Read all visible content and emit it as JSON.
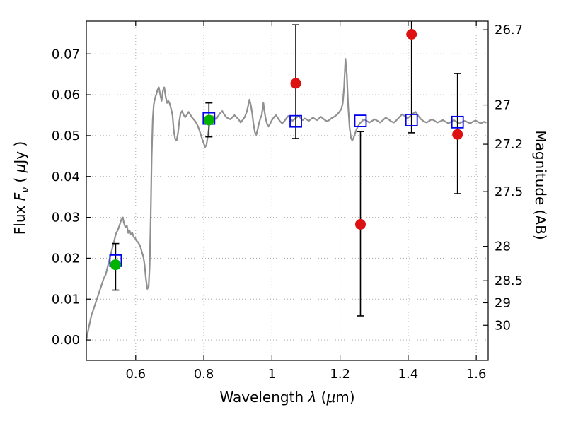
{
  "labels": {
    "xlabel": {
      "t1": "Wavelength ",
      "sym": "λ",
      "t2": " (",
      "usym": "μ",
      "t3": "m)"
    },
    "ylabel_left": {
      "t1": "Flux ",
      "sym": "F",
      "sub": "ν",
      "t2": " ( ",
      "usym": "μ",
      "t3": "Jy )"
    },
    "ylabel_right": "Magnitude (AB)"
  },
  "chart_data": {
    "type": "line",
    "title": "",
    "xlabel": "Wavelength λ (μm)",
    "ylabel": "Flux Fν ( μJy )",
    "ylabel_right": "Magnitude (AB)",
    "xlim": [
      0.455,
      1.635
    ],
    "ylim": [
      -0.005,
      0.078
    ],
    "grid": true,
    "x_ticks": [
      {
        "v": 0.6,
        "label": "0.6"
      },
      {
        "v": 0.8,
        "label": "0.8"
      },
      {
        "v": 1.0,
        "label": "1"
      },
      {
        "v": 1.2,
        "label": "1.2"
      },
      {
        "v": 1.4,
        "label": "1.4"
      },
      {
        "v": 1.6,
        "label": "1.6"
      }
    ],
    "y_ticks": [
      {
        "v": 0.0,
        "label": "0.00"
      },
      {
        "v": 0.01,
        "label": "0.01"
      },
      {
        "v": 0.02,
        "label": "0.02"
      },
      {
        "v": 0.03,
        "label": "0.03"
      },
      {
        "v": 0.04,
        "label": "0.04"
      },
      {
        "v": 0.05,
        "label": "0.05"
      },
      {
        "v": 0.06,
        "label": "0.06"
      },
      {
        "v": 0.07,
        "label": "0.07"
      }
    ],
    "right_ticks": [
      {
        "v": 0.0759,
        "label": "26.7"
      },
      {
        "v": 0.0575,
        "label": "27"
      },
      {
        "v": 0.0479,
        "label": "27.2"
      },
      {
        "v": 0.0363,
        "label": "27.5"
      },
      {
        "v": 0.0229,
        "label": "28"
      },
      {
        "v": 0.0145,
        "label": "28.5"
      },
      {
        "v": 0.0091,
        "label": "29"
      },
      {
        "v": 0.0036,
        "label": "30"
      }
    ],
    "colors": {
      "spectrum": "#909090",
      "observed": "#dd1111",
      "detected": "#00b300",
      "model": "#0000ee",
      "errorbar": "#000000",
      "grid": "#aaaaaa",
      "spine": "#000000"
    },
    "model_photometry": [
      {
        "x": 0.541,
        "y": 0.0194
      },
      {
        "x": 0.815,
        "y": 0.0542
      },
      {
        "x": 1.07,
        "y": 0.0535
      },
      {
        "x": 1.26,
        "y": 0.0536
      },
      {
        "x": 1.41,
        "y": 0.0538
      },
      {
        "x": 1.545,
        "y": 0.0533
      }
    ],
    "observed_photometry": [
      {
        "x": 1.07,
        "y": 0.0628,
        "lo": 0.0493,
        "hi": 0.0771,
        "hi_clipped": false
      },
      {
        "x": 1.26,
        "y": 0.0283,
        "lo": 0.0059,
        "hi": 0.051,
        "hi_clipped": false
      },
      {
        "x": 1.41,
        "y": 0.0748,
        "lo": 0.0507,
        "hi": 0.085,
        "hi_clipped": true
      },
      {
        "x": 1.545,
        "y": 0.0503,
        "lo": 0.0358,
        "hi": 0.0652,
        "hi_clipped": false
      }
    ],
    "detected_photometry": [
      {
        "x": 0.541,
        "y": 0.0184,
        "lo": 0.0122,
        "hi": 0.0236
      },
      {
        "x": 0.815,
        "y": 0.0538,
        "lo": 0.0497,
        "hi": 0.058
      }
    ],
    "spectrum": [
      [
        0.455,
        0.0
      ],
      [
        0.462,
        0.003
      ],
      [
        0.47,
        0.006
      ],
      [
        0.478,
        0.008
      ],
      [
        0.486,
        0.01
      ],
      [
        0.494,
        0.012
      ],
      [
        0.5,
        0.0135
      ],
      [
        0.506,
        0.015
      ],
      [
        0.512,
        0.016
      ],
      [
        0.518,
        0.018
      ],
      [
        0.524,
        0.02
      ],
      [
        0.53,
        0.022
      ],
      [
        0.536,
        0.024
      ],
      [
        0.542,
        0.026
      ],
      [
        0.548,
        0.027
      ],
      [
        0.554,
        0.0285
      ],
      [
        0.558,
        0.0295
      ],
      [
        0.562,
        0.03
      ],
      [
        0.566,
        0.0285
      ],
      [
        0.57,
        0.0275
      ],
      [
        0.574,
        0.028
      ],
      [
        0.578,
        0.0262
      ],
      [
        0.582,
        0.0268
      ],
      [
        0.586,
        0.0258
      ],
      [
        0.59,
        0.0262
      ],
      [
        0.594,
        0.0252
      ],
      [
        0.598,
        0.025
      ],
      [
        0.602,
        0.0243
      ],
      [
        0.606,
        0.024
      ],
      [
        0.61,
        0.0235
      ],
      [
        0.614,
        0.0228
      ],
      [
        0.618,
        0.0215
      ],
      [
        0.622,
        0.0205
      ],
      [
        0.626,
        0.0185
      ],
      [
        0.63,
        0.015
      ],
      [
        0.634,
        0.0125
      ],
      [
        0.638,
        0.013
      ],
      [
        0.641,
        0.018
      ],
      [
        0.644,
        0.03
      ],
      [
        0.647,
        0.045
      ],
      [
        0.65,
        0.054
      ],
      [
        0.653,
        0.0575
      ],
      [
        0.656,
        0.059
      ],
      [
        0.66,
        0.06
      ],
      [
        0.664,
        0.0612
      ],
      [
        0.668,
        0.0618
      ],
      [
        0.672,
        0.06
      ],
      [
        0.676,
        0.0585
      ],
      [
        0.68,
        0.061
      ],
      [
        0.684,
        0.0618
      ],
      [
        0.688,
        0.0595
      ],
      [
        0.692,
        0.058
      ],
      [
        0.696,
        0.0585
      ],
      [
        0.7,
        0.0578
      ],
      [
        0.704,
        0.0565
      ],
      [
        0.708,
        0.055
      ],
      [
        0.712,
        0.051
      ],
      [
        0.716,
        0.0492
      ],
      [
        0.72,
        0.0488
      ],
      [
        0.724,
        0.0505
      ],
      [
        0.728,
        0.0535
      ],
      [
        0.732,
        0.0555
      ],
      [
        0.736,
        0.056
      ],
      [
        0.74,
        0.0552
      ],
      [
        0.745,
        0.0545
      ],
      [
        0.75,
        0.055
      ],
      [
        0.755,
        0.0558
      ],
      [
        0.76,
        0.0552
      ],
      [
        0.765,
        0.0545
      ],
      [
        0.77,
        0.054
      ],
      [
        0.775,
        0.0535
      ],
      [
        0.78,
        0.0528
      ],
      [
        0.785,
        0.0518
      ],
      [
        0.79,
        0.0505
      ],
      [
        0.795,
        0.0492
      ],
      [
        0.8,
        0.048
      ],
      [
        0.804,
        0.0472
      ],
      [
        0.808,
        0.0478
      ],
      [
        0.812,
        0.05
      ],
      [
        0.816,
        0.0525
      ],
      [
        0.82,
        0.054
      ],
      [
        0.825,
        0.0548
      ],
      [
        0.83,
        0.0545
      ],
      [
        0.836,
        0.054
      ],
      [
        0.842,
        0.0548
      ],
      [
        0.848,
        0.0555
      ],
      [
        0.854,
        0.056
      ],
      [
        0.86,
        0.0552
      ],
      [
        0.866,
        0.0545
      ],
      [
        0.872,
        0.0542
      ],
      [
        0.878,
        0.054
      ],
      [
        0.884,
        0.0545
      ],
      [
        0.89,
        0.055
      ],
      [
        0.896,
        0.0545
      ],
      [
        0.902,
        0.054
      ],
      [
        0.908,
        0.0532
      ],
      [
        0.914,
        0.0538
      ],
      [
        0.92,
        0.0545
      ],
      [
        0.926,
        0.0558
      ],
      [
        0.93,
        0.0572
      ],
      [
        0.934,
        0.0588
      ],
      [
        0.938,
        0.0575
      ],
      [
        0.942,
        0.0555
      ],
      [
        0.946,
        0.0528
      ],
      [
        0.95,
        0.0508
      ],
      [
        0.954,
        0.0502
      ],
      [
        0.958,
        0.0515
      ],
      [
        0.962,
        0.053
      ],
      [
        0.966,
        0.0542
      ],
      [
        0.97,
        0.055
      ],
      [
        0.975,
        0.058
      ],
      [
        0.978,
        0.056
      ],
      [
        0.982,
        0.054
      ],
      [
        0.986,
        0.0528
      ],
      [
        0.99,
        0.0522
      ],
      [
        0.995,
        0.053
      ],
      [
        1.0,
        0.0538
      ],
      [
        1.006,
        0.0545
      ],
      [
        1.012,
        0.055
      ],
      [
        1.018,
        0.0542
      ],
      [
        1.024,
        0.0535
      ],
      [
        1.03,
        0.053
      ],
      [
        1.036,
        0.0535
      ],
      [
        1.042,
        0.0542
      ],
      [
        1.048,
        0.0548
      ],
      [
        1.054,
        0.0542
      ],
      [
        1.06,
        0.0536
      ],
      [
        1.066,
        0.054
      ],
      [
        1.072,
        0.0544
      ],
      [
        1.078,
        0.0548
      ],
      [
        1.084,
        0.0543
      ],
      [
        1.09,
        0.0538
      ],
      [
        1.096,
        0.0542
      ],
      [
        1.102,
        0.054
      ],
      [
        1.108,
        0.0536
      ],
      [
        1.114,
        0.054
      ],
      [
        1.12,
        0.0544
      ],
      [
        1.126,
        0.0541
      ],
      [
        1.132,
        0.0538
      ],
      [
        1.138,
        0.0542
      ],
      [
        1.144,
        0.0546
      ],
      [
        1.15,
        0.0542
      ],
      [
        1.156,
        0.0538
      ],
      [
        1.162,
        0.0535
      ],
      [
        1.168,
        0.0538
      ],
      [
        1.174,
        0.0542
      ],
      [
        1.18,
        0.0545
      ],
      [
        1.186,
        0.0548
      ],
      [
        1.192,
        0.0552
      ],
      [
        1.198,
        0.0558
      ],
      [
        1.204,
        0.0565
      ],
      [
        1.208,
        0.058
      ],
      [
        1.212,
        0.062
      ],
      [
        1.216,
        0.0688
      ],
      [
        1.22,
        0.065
      ],
      [
        1.224,
        0.057
      ],
      [
        1.228,
        0.052
      ],
      [
        1.232,
        0.0495
      ],
      [
        1.236,
        0.0488
      ],
      [
        1.24,
        0.0495
      ],
      [
        1.246,
        0.051
      ],
      [
        1.252,
        0.0522
      ],
      [
        1.258,
        0.053
      ],
      [
        1.264,
        0.0535
      ],
      [
        1.27,
        0.054
      ],
      [
        1.278,
        0.0536
      ],
      [
        1.286,
        0.0532
      ],
      [
        1.294,
        0.0536
      ],
      [
        1.302,
        0.054
      ],
      [
        1.31,
        0.0536
      ],
      [
        1.318,
        0.0532
      ],
      [
        1.326,
        0.0538
      ],
      [
        1.334,
        0.0544
      ],
      [
        1.342,
        0.054
      ],
      [
        1.35,
        0.0535
      ],
      [
        1.358,
        0.0532
      ],
      [
        1.366,
        0.0538
      ],
      [
        1.374,
        0.0545
      ],
      [
        1.382,
        0.0552
      ],
      [
        1.39,
        0.0548
      ],
      [
        1.398,
        0.0542
      ],
      [
        1.406,
        0.0548
      ],
      [
        1.414,
        0.0554
      ],
      [
        1.422,
        0.0558
      ],
      [
        1.43,
        0.0548
      ],
      [
        1.438,
        0.054
      ],
      [
        1.446,
        0.0535
      ],
      [
        1.454,
        0.0532
      ],
      [
        1.462,
        0.0536
      ],
      [
        1.47,
        0.054
      ],
      [
        1.478,
        0.0536
      ],
      [
        1.486,
        0.0532
      ],
      [
        1.494,
        0.0535
      ],
      [
        1.502,
        0.0538
      ],
      [
        1.51,
        0.0534
      ],
      [
        1.518,
        0.053
      ],
      [
        1.526,
        0.0534
      ],
      [
        1.534,
        0.0538
      ],
      [
        1.542,
        0.0534
      ],
      [
        1.55,
        0.053
      ],
      [
        1.558,
        0.0533
      ],
      [
        1.566,
        0.0536
      ],
      [
        1.574,
        0.0533
      ],
      [
        1.582,
        0.053
      ],
      [
        1.59,
        0.0534
      ],
      [
        1.598,
        0.0537
      ],
      [
        1.606,
        0.0533
      ],
      [
        1.614,
        0.053
      ],
      [
        1.622,
        0.0534
      ],
      [
        1.63,
        0.0532
      ]
    ]
  }
}
